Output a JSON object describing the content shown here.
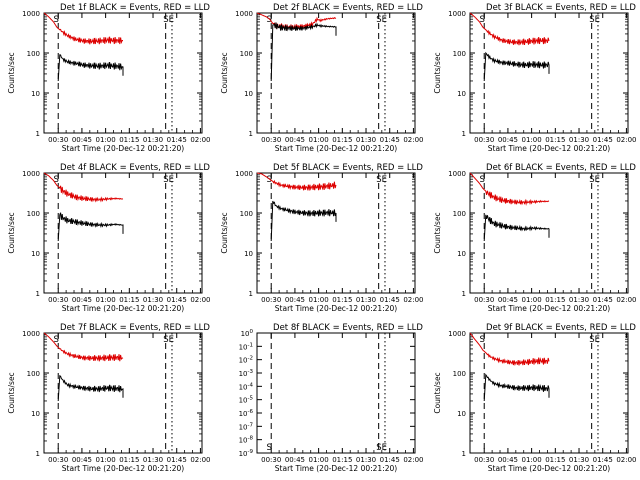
{
  "figure": {
    "ylabel": "Counts/sec",
    "xlabel": "Start Time (20-Dec-12 00:21:20)",
    "x_tick_labels": [
      "00:30",
      "00:45",
      "01:00",
      "01:15",
      "01:30",
      "01:45",
      "02:00"
    ],
    "colors": {
      "events": "#000000",
      "lld": "#dd0000",
      "axes": "#000000"
    }
  },
  "chart_data": [
    {
      "type": "line",
      "title": "Det 1f BLACK = Events, RED = LLD",
      "xlabel": "Start Time (20-Dec-12 00:21:20)",
      "ylabel": "Counts/sec",
      "x_unit": "minutes after 00:21:20",
      "xlim": [
        0,
        100
      ],
      "ylim": [
        1,
        1000
      ],
      "yscale": "log",
      "y_tick_labels": [
        "1",
        "10",
        "100",
        "1000"
      ],
      "markers": {
        "dashed": [
          9,
          77
        ],
        "dotted": [
          81
        ],
        "labels": [
          "S",
          "SE"
        ],
        "label_pos": "top"
      },
      "series": [
        {
          "name": "BLACK = Events",
          "x": [
            9,
            10,
            12,
            15,
            20,
            25,
            30,
            35,
            40,
            45,
            50
          ],
          "values": [
            20,
            90,
            70,
            60,
            55,
            50,
            48,
            47,
            49,
            47,
            45
          ]
        },
        {
          "name": "RED = LLD",
          "x": [
            0,
            3,
            6,
            8,
            10,
            12,
            15,
            20,
            25,
            30,
            35,
            40,
            45,
            50
          ],
          "values": [
            1000,
            800,
            600,
            450,
            380,
            330,
            270,
            220,
            200,
            195,
            200,
            210,
            205,
            205
          ]
        }
      ]
    },
    {
      "type": "line",
      "title": "Det 2f BLACK = Events, RED = LLD",
      "xlabel": "Start Time (20-Dec-12 00:21:20)",
      "ylabel": "Counts/sec",
      "x_unit": "minutes after 00:21:20",
      "xlim": [
        0,
        100
      ],
      "ylim": [
        1,
        1000
      ],
      "yscale": "log",
      "y_tick_labels": [
        "1",
        "10",
        "100",
        "1000"
      ],
      "markers": {
        "dashed": [
          9,
          77
        ],
        "dotted": [
          81
        ],
        "labels": [
          "S",
          "SE"
        ],
        "label_pos": "top"
      },
      "series": [
        {
          "name": "BLACK = Events",
          "x": [
            9,
            10,
            12,
            15,
            20,
            25,
            30,
            35,
            38,
            40,
            45,
            50
          ],
          "values": [
            20,
            500,
            480,
            430,
            420,
            410,
            420,
            450,
            500,
            480,
            460,
            450
          ]
        },
        {
          "name": "RED = LLD",
          "x": [
            0,
            3,
            6,
            8,
            10,
            12,
            15,
            20,
            25,
            30,
            35,
            38,
            40,
            45,
            50
          ],
          "values": [
            1000,
            900,
            800,
            700,
            550,
            480,
            460,
            440,
            450,
            470,
            520,
            700,
            650,
            720,
            750
          ]
        }
      ]
    },
    {
      "type": "line",
      "title": "Det 3f BLACK = Events, RED = LLD",
      "xlabel": "Start Time (20-Dec-12 00:21:20)",
      "ylabel": "Counts/sec",
      "x_unit": "minutes after 00:21:20",
      "xlim": [
        0,
        100
      ],
      "ylim": [
        1,
        1000
      ],
      "yscale": "log",
      "y_tick_labels": [
        "1",
        "10",
        "100",
        "1000"
      ],
      "markers": {
        "dashed": [
          9,
          77
        ],
        "dotted": [
          81
        ],
        "labels": [
          "S",
          "SE"
        ],
        "label_pos": "top"
      },
      "series": [
        {
          "name": "BLACK = Events",
          "x": [
            9,
            10,
            12,
            15,
            20,
            25,
            30,
            35,
            40,
            45,
            50
          ],
          "values": [
            20,
            100,
            80,
            65,
            58,
            55,
            52,
            50,
            52,
            50,
            50
          ]
        },
        {
          "name": "RED = LLD",
          "x": [
            0,
            3,
            6,
            8,
            10,
            12,
            15,
            20,
            25,
            30,
            35,
            40,
            45,
            50
          ],
          "values": [
            1000,
            800,
            600,
            450,
            380,
            320,
            260,
            210,
            190,
            185,
            190,
            200,
            205,
            200
          ]
        }
      ]
    },
    {
      "type": "line",
      "title": "Det 4f BLACK = Events, RED = LLD",
      "xlabel": "Start Time (20-Dec-12 00:21:20)",
      "ylabel": "Counts/sec",
      "x_unit": "minutes after 00:21:20",
      "xlim": [
        0,
        100
      ],
      "ylim": [
        1,
        1000
      ],
      "yscale": "log",
      "y_tick_labels": [
        "1",
        "10",
        "100",
        "1000"
      ],
      "markers": {
        "dashed": [
          9,
          77
        ],
        "dotted": [
          81
        ],
        "labels": [
          "S",
          "SE"
        ],
        "label_pos": "top"
      },
      "series": [
        {
          "name": "BLACK = Events",
          "x": [
            9,
            10,
            12,
            15,
            20,
            25,
            30,
            35,
            40,
            45,
            50
          ],
          "values": [
            20,
            90,
            75,
            65,
            60,
            55,
            52,
            50,
            50,
            52,
            50
          ]
        },
        {
          "name": "RED = LLD",
          "x": [
            0,
            3,
            6,
            8,
            10,
            12,
            15,
            20,
            25,
            30,
            35,
            40,
            45,
            50
          ],
          "values": [
            1000,
            850,
            650,
            500,
            420,
            360,
            300,
            250,
            230,
            220,
            215,
            225,
            230,
            225
          ]
        }
      ]
    },
    {
      "type": "line",
      "title": "Det 5f BLACK = Events, RED = LLD",
      "xlabel": "Start Time (20-Dec-12 00:21:20)",
      "ylabel": "Counts/sec",
      "x_unit": "minutes after 00:21:20",
      "xlim": [
        0,
        100
      ],
      "ylim": [
        1,
        1000
      ],
      "yscale": "log",
      "y_tick_labels": [
        "1",
        "10",
        "100",
        "1000"
      ],
      "markers": {
        "dashed": [
          9,
          77
        ],
        "dotted": [
          81
        ],
        "labels": [
          "S",
          "SE"
        ],
        "label_pos": "top"
      },
      "series": [
        {
          "name": "BLACK = Events",
          "x": [
            9,
            10,
            12,
            15,
            20,
            25,
            30,
            35,
            40,
            45,
            50
          ],
          "values": [
            20,
            200,
            150,
            130,
            115,
            105,
            100,
            98,
            100,
            102,
            100
          ]
        },
        {
          "name": "RED = LLD",
          "x": [
            0,
            3,
            6,
            8,
            10,
            12,
            15,
            20,
            25,
            30,
            35,
            40,
            45,
            50
          ],
          "values": [
            1000,
            950,
            800,
            700,
            620,
            560,
            500,
            460,
            440,
            430,
            440,
            450,
            470,
            500
          ]
        }
      ]
    },
    {
      "type": "line",
      "title": "Det 6f BLACK = Events, RED = LLD",
      "xlabel": "Start Time (20-Dec-12 00:21:20)",
      "ylabel": "Counts/sec",
      "x_unit": "minutes after 00:21:20",
      "xlim": [
        0,
        100
      ],
      "ylim": [
        1,
        1000
      ],
      "yscale": "log",
      "y_tick_labels": [
        "1",
        "10",
        "100",
        "1000"
      ],
      "markers": {
        "dashed": [
          9,
          77
        ],
        "dotted": [
          81
        ],
        "labels": [
          "S",
          "SE"
        ],
        "label_pos": "top"
      },
      "series": [
        {
          "name": "BLACK = Events",
          "x": [
            9,
            10,
            12,
            15,
            20,
            25,
            30,
            35,
            40,
            45,
            50
          ],
          "values": [
            20,
            90,
            70,
            55,
            48,
            44,
            42,
            40,
            42,
            41,
            40
          ]
        },
        {
          "name": "RED = LLD",
          "x": [
            0,
            3,
            6,
            8,
            10,
            12,
            15,
            20,
            25,
            30,
            35,
            40,
            45,
            50
          ],
          "values": [
            1000,
            750,
            550,
            420,
            350,
            300,
            250,
            210,
            195,
            185,
            185,
            190,
            195,
            195
          ]
        }
      ]
    },
    {
      "type": "line",
      "title": "Det 7f BLACK = Events, RED = LLD",
      "xlabel": "Start Time (20-Dec-12 00:21:20)",
      "ylabel": "Counts/sec",
      "x_unit": "minutes after 00:21:20",
      "xlim": [
        0,
        100
      ],
      "ylim": [
        1,
        1000
      ],
      "yscale": "log",
      "y_tick_labels": [
        "1",
        "10",
        "100",
        "1000"
      ],
      "markers": {
        "dashed": [
          9,
          77
        ],
        "dotted": [
          81
        ],
        "labels": [
          "S",
          "SE"
        ],
        "label_pos": "top"
      },
      "series": [
        {
          "name": "BLACK = Events",
          "x": [
            9,
            10,
            12,
            15,
            20,
            25,
            30,
            35,
            40,
            45,
            50
          ],
          "values": [
            20,
            85,
            65,
            50,
            45,
            42,
            40,
            40,
            42,
            41,
            40
          ]
        },
        {
          "name": "RED = LLD",
          "x": [
            0,
            3,
            6,
            8,
            10,
            12,
            15,
            20,
            25,
            30,
            35,
            40,
            45,
            50
          ],
          "values": [
            1000,
            800,
            600,
            480,
            400,
            350,
            300,
            260,
            240,
            235,
            235,
            240,
            245,
            240
          ]
        }
      ]
    },
    {
      "type": "line",
      "title": "Det 8f BLACK = Events, RED = LLD",
      "xlabel": "Start Time (20-Dec-12 00:21:20)",
      "ylabel": "",
      "x_unit": "minutes after 00:21:20",
      "xlim": [
        0,
        100
      ],
      "ylim": [
        1e-09,
        1
      ],
      "yscale": "log",
      "y_tick_labels": [
        "10^-9",
        "10^-8",
        "10^-7",
        "10^-6",
        "10^-5",
        "10^-4",
        "10^-3",
        "10^-2",
        "10^-1",
        "10^0"
      ],
      "markers": {
        "dashed": [
          9,
          77
        ],
        "dotted": [
          81
        ],
        "labels": [
          "S",
          "SE"
        ],
        "label_pos": "bottom"
      },
      "series": []
    },
    {
      "type": "line",
      "title": "Det 9f BLACK = Events, RED = LLD",
      "xlabel": "Start Time (20-Dec-12 00:21:20)",
      "ylabel": "Counts/sec",
      "x_unit": "minutes after 00:21:20",
      "xlim": [
        0,
        100
      ],
      "ylim": [
        1,
        1000
      ],
      "yscale": "log",
      "y_tick_labels": [
        "1",
        "10",
        "100",
        "1000"
      ],
      "markers": {
        "dashed": [
          9,
          77
        ],
        "dotted": [
          81
        ],
        "labels": [
          "S",
          "SE"
        ],
        "label_pos": "top"
      },
      "series": [
        {
          "name": "BLACK = Events",
          "x": [
            9,
            10,
            12,
            15,
            20,
            25,
            30,
            35,
            40,
            45,
            50
          ],
          "values": [
            20,
            90,
            70,
            55,
            48,
            45,
            42,
            42,
            43,
            42,
            40
          ]
        },
        {
          "name": "RED = LLD",
          "x": [
            0,
            3,
            6,
            8,
            10,
            12,
            15,
            20,
            25,
            30,
            35,
            40,
            45,
            50
          ],
          "values": [
            1000,
            700,
            500,
            380,
            320,
            270,
            230,
            200,
            185,
            180,
            185,
            195,
            200,
            195
          ]
        }
      ]
    }
  ]
}
